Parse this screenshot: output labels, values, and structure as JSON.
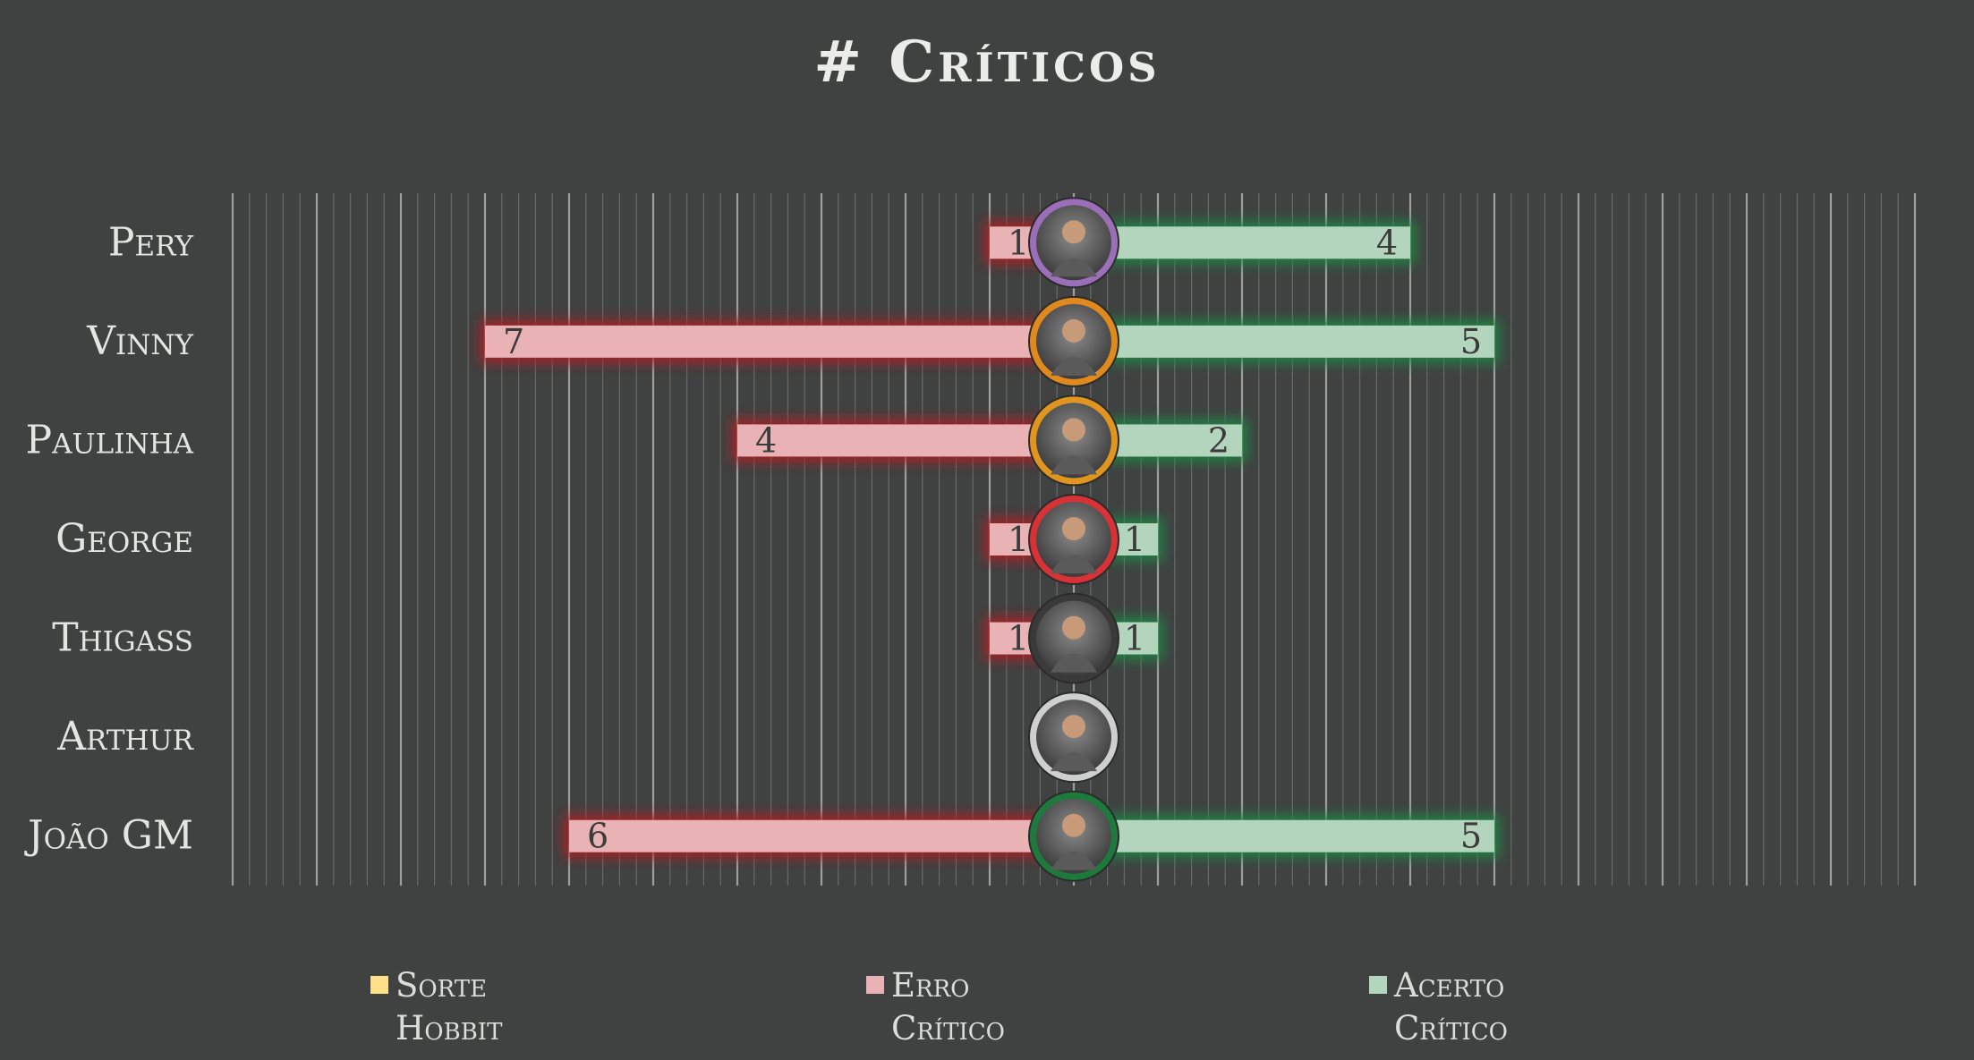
{
  "chart_data": {
    "type": "bar",
    "title": "# Críticos",
    "categories": [
      "Pery",
      "Vinny",
      "Paulinha",
      "George",
      "Thigass",
      "Arthur",
      "João GM"
    ],
    "series": [
      {
        "name": "Sorte Hobbit",
        "values": [
          0,
          0,
          0,
          0,
          0,
          0,
          0
        ],
        "color": "#ffe08a"
      },
      {
        "name": "Erro Crítico",
        "values": [
          1,
          7,
          4,
          1,
          1,
          0,
          6
        ],
        "color": "#e9b2b4"
      },
      {
        "name": "Acerto Crítico",
        "values": [
          4,
          5,
          2,
          1,
          1,
          0,
          5
        ],
        "color": "#b3d5bd"
      }
    ],
    "xlim": [
      -10,
      10
    ],
    "grid": true,
    "legend_position": "bottom",
    "avatar_ring_colors": [
      "#9b6fb8",
      "#e08a1e",
      "#e0961e",
      "#d83236",
      "#3a3a3a",
      "#cfcfcf",
      "#1d7a3c"
    ]
  },
  "legend": {
    "sorte_line1": "Sorte",
    "sorte_line2": "Hobbit",
    "erro_line1": "Erro",
    "erro_line2": "Crítico",
    "acerto_line1": "Acerto",
    "acerto_line2": "Crítico"
  }
}
